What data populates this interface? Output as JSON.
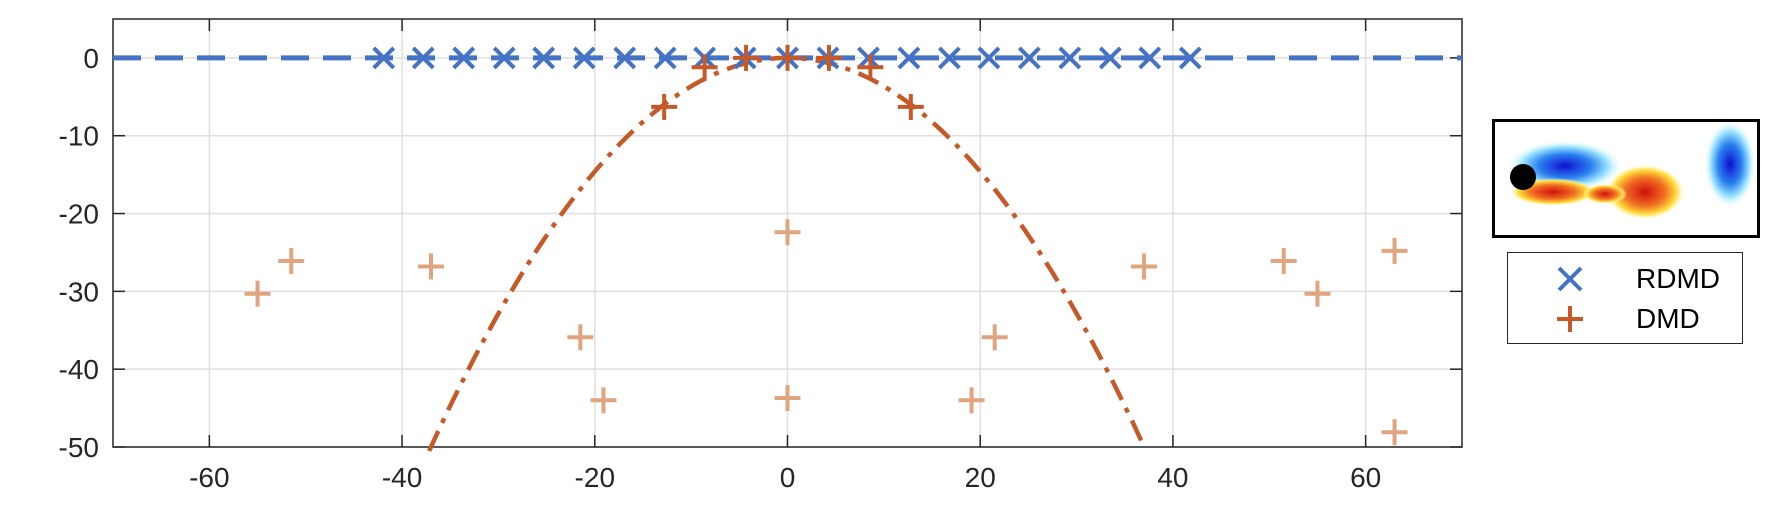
{
  "chart_data": {
    "type": "scatter",
    "xlim": [
      -70,
      70
    ],
    "ylim": [
      -50,
      5
    ],
    "x_ticks": [
      -60,
      -40,
      -20,
      0,
      20,
      40,
      60
    ],
    "x_tick_labels": [
      "-60",
      "-40",
      "-20",
      "0",
      "20",
      "40",
      "60"
    ],
    "y_ticks": [
      0,
      -10,
      -20,
      -30,
      -40,
      -50
    ],
    "y_tick_labels": [
      "0",
      "-10",
      "-20",
      "-30",
      "-40",
      "-50"
    ],
    "grid": true,
    "legend_position": "right",
    "series": [
      {
        "name": "RDMD",
        "marker": "x",
        "color": "#4472C4",
        "points": [
          {
            "x": -41.9,
            "y": 0
          },
          {
            "x": -37.8,
            "y": 0
          },
          {
            "x": -33.6,
            "y": 0
          },
          {
            "x": -29.4,
            "y": 0
          },
          {
            "x": -25.3,
            "y": 0
          },
          {
            "x": -21.1,
            "y": 0
          },
          {
            "x": -16.9,
            "y": 0
          },
          {
            "x": -12.7,
            "y": 0
          },
          {
            "x": -8.6,
            "y": 0
          },
          {
            "x": -4.4,
            "y": 0
          },
          {
            "x": 0,
            "y": 0
          },
          {
            "x": 4.2,
            "y": 0
          },
          {
            "x": 8.4,
            "y": 0
          },
          {
            "x": 12.6,
            "y": 0
          },
          {
            "x": 16.8,
            "y": 0
          },
          {
            "x": 20.9,
            "y": 0
          },
          {
            "x": 25.1,
            "y": 0
          },
          {
            "x": 29.3,
            "y": 0
          },
          {
            "x": 33.5,
            "y": 0
          },
          {
            "x": 37.6,
            "y": 0
          },
          {
            "x": 41.8,
            "y": 0
          }
        ]
      },
      {
        "name": "DMD",
        "marker": "+",
        "color": "#C55A28",
        "points": [
          {
            "x": -12.8,
            "y": -6.3
          },
          {
            "x": -8.6,
            "y": -1.2
          },
          {
            "x": -4.3,
            "y": 0
          },
          {
            "x": 0,
            "y": 0
          },
          {
            "x": 4.3,
            "y": 0
          },
          {
            "x": 8.6,
            "y": -1.2
          },
          {
            "x": 12.8,
            "y": -6.3
          }
        ]
      },
      {
        "name": "",
        "marker": "+",
        "color": "#E0A47F",
        "points": [
          {
            "x": -55.0,
            "y": -30.3
          },
          {
            "x": -51.5,
            "y": -26.1
          },
          {
            "x": -37.0,
            "y": -26.8
          },
          {
            "x": -21.5,
            "y": -35.9
          },
          {
            "x": -19.1,
            "y": -44.0
          },
          {
            "x": 0,
            "y": -22.4
          },
          {
            "x": 0,
            "y": -43.7
          },
          {
            "x": 19.1,
            "y": -44.0
          },
          {
            "x": 21.5,
            "y": -35.9
          },
          {
            "x": 37.0,
            "y": -26.8
          },
          {
            "x": 51.5,
            "y": -26.1
          },
          {
            "x": 55.0,
            "y": -30.3
          },
          {
            "x": 63.0,
            "y": -24.8
          },
          {
            "x": 63.0,
            "y": -48.1
          }
        ]
      }
    ],
    "reference_lines": [
      {
        "style": "dashed",
        "color": "#4472C4",
        "y": 0,
        "x_range": [
          -70,
          70
        ]
      },
      {
        "style": "dash-dot",
        "color": "#C55A28",
        "equation": "y = -0.0365 * x^2",
        "x_range": [
          -37.2,
          37.2
        ]
      }
    ]
  },
  "legend": {
    "items": [
      {
        "label": "RDMD",
        "marker": "x",
        "color": "#4472C4"
      },
      {
        "label": "DMD",
        "marker": "+",
        "color": "#C55A28"
      }
    ]
  },
  "inset": {
    "description_icon": "cylinder-wake-vorticity-image"
  }
}
